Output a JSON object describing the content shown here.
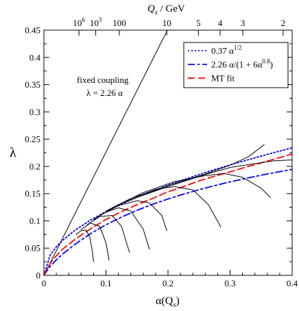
{
  "chart_data": {
    "type": "line",
    "title": "",
    "xlabel": "α(Q",
    "xlabel_sub": "s",
    "xlabel_close": ")",
    "ylabel": "λ",
    "xlim": [
      0,
      0.4
    ],
    "ylim": [
      0,
      0.45
    ],
    "x_ticks": [
      0,
      0.1,
      0.2,
      0.3,
      0.4
    ],
    "x_tick_labels": [
      "0",
      "0.1",
      "0.2",
      "0.3",
      "0.4"
    ],
    "y_ticks": [
      0,
      0.05,
      0.1,
      0.15,
      0.2,
      0.25,
      0.3,
      0.35,
      0.4,
      0.45
    ],
    "y_tick_labels": [
      "0",
      "0.05",
      "0.1",
      "0.15",
      "0.2",
      "0.25",
      "0.3",
      "0.35",
      "0.4",
      "0.45"
    ],
    "top_axis": {
      "label_main": "Q",
      "label_sub": "s",
      "label_unit": " / GeV",
      "ticks": [
        {
          "alpha": 0.0565,
          "base": "10",
          "exp": "6"
        },
        {
          "alpha": 0.0835,
          "base": "10",
          "exp": "3"
        },
        {
          "alpha": 0.1215,
          "base": "100",
          "exp": ""
        },
        {
          "alpha": 0.198,
          "base": "10",
          "exp": ""
        },
        {
          "alpha": 0.249,
          "base": "5",
          "exp": ""
        },
        {
          "alpha": 0.284,
          "base": "4",
          "exp": ""
        },
        {
          "alpha": 0.3205,
          "base": "3",
          "exp": ""
        },
        {
          "alpha": 0.3855,
          "base": "2",
          "exp": ""
        }
      ]
    },
    "annotation": {
      "line1": "fixed coupling",
      "line2": "λ = 2.26 α",
      "anchor_alpha": 0.165,
      "anchor_lambda": 0.36
    },
    "legend": {
      "position": "top-right",
      "entries": [
        {
          "id": "sqrt",
          "text_main": "0.37 α",
          "text_sup": "1/2",
          "text_tail": "",
          "color": "#0000ff",
          "dash": "2,3"
        },
        {
          "id": "ratio",
          "text_main": "2.26 α/(1 + 6α",
          "text_sup": "0.8",
          "text_tail": ")",
          "color": "#0000ff",
          "dash": "10,4,3,4"
        },
        {
          "id": "mt",
          "text_main": "MT fit",
          "text_sup": "",
          "text_tail": "",
          "color": "#ff0000",
          "dash": "10,5"
        }
      ]
    },
    "series": [
      {
        "kind": "fixed",
        "color": "#000000",
        "points": [
          [
            0,
            0
          ],
          [
            0.199,
            0.45
          ]
        ]
      },
      {
        "kind": "sqrt",
        "color": "#0000ff",
        "dash": "2,3",
        "points": [
          [
            0,
            0
          ],
          [
            0.01,
            0.037
          ],
          [
            0.02,
            0.0523
          ],
          [
            0.03,
            0.0641
          ],
          [
            0.05,
            0.0827
          ],
          [
            0.075,
            0.1013
          ],
          [
            0.1,
            0.117
          ],
          [
            0.125,
            0.1308
          ],
          [
            0.15,
            0.1433
          ],
          [
            0.175,
            0.1548
          ],
          [
            0.2,
            0.1655
          ],
          [
            0.225,
            0.1755
          ],
          [
            0.25,
            0.185
          ],
          [
            0.275,
            0.194
          ],
          [
            0.3,
            0.2027
          ],
          [
            0.325,
            0.2109
          ],
          [
            0.35,
            0.2189
          ],
          [
            0.375,
            0.2266
          ],
          [
            0.4,
            0.234
          ]
        ]
      },
      {
        "kind": "ratio",
        "color": "#0000ff",
        "dash": "10,4,3,4",
        "points": [
          [
            0,
            0
          ],
          [
            0.01,
            0.0164
          ],
          [
            0.02,
            0.0284
          ],
          [
            0.03,
            0.039
          ],
          [
            0.05,
            0.0569
          ],
          [
            0.075,
            0.0764
          ],
          [
            0.1,
            0.0929
          ],
          [
            0.125,
            0.107
          ],
          [
            0.15,
            0.1194
          ],
          [
            0.175,
            0.1304
          ],
          [
            0.2,
            0.1402
          ],
          [
            0.225,
            0.1491
          ],
          [
            0.25,
            0.1572
          ],
          [
            0.275,
            0.1647
          ],
          [
            0.3,
            0.1715
          ],
          [
            0.325,
            0.1779
          ],
          [
            0.35,
            0.1838
          ],
          [
            0.375,
            0.1893
          ],
          [
            0.4,
            0.1945
          ]
        ]
      },
      {
        "kind": "mt",
        "color": "#ff0000",
        "dash": "10,5",
        "points": [
          [
            0,
            0
          ],
          [
            0.01,
            0.022
          ],
          [
            0.02,
            0.036
          ],
          [
            0.03,
            0.048
          ],
          [
            0.05,
            0.066
          ],
          [
            0.075,
            0.0855
          ],
          [
            0.1,
            0.1025
          ],
          [
            0.125,
            0.117
          ],
          [
            0.15,
            0.1298
          ],
          [
            0.175,
            0.1412
          ],
          [
            0.2,
            0.1535
          ],
          [
            0.225,
            0.163
          ],
          [
            0.25,
            0.1733
          ],
          [
            0.275,
            0.182
          ],
          [
            0.3,
            0.19
          ],
          [
            0.325,
            0.1985
          ],
          [
            0.35,
            0.2065
          ],
          [
            0.375,
            0.2145
          ],
          [
            0.4,
            0.2225
          ]
        ]
      },
      {
        "kind": "solid",
        "color": "#000000",
        "points": [
          [
            0.052,
            0.075
          ],
          [
            0.06,
            0.082
          ],
          [
            0.068,
            0.083
          ],
          [
            0.074,
            0.07
          ],
          [
            0.078,
            0.045
          ],
          [
            0.08,
            0.025
          ]
        ]
      },
      {
        "kind": "solid",
        "color": "#000000",
        "points": [
          [
            0.06,
            0.084
          ],
          [
            0.075,
            0.096
          ],
          [
            0.09,
            0.09
          ],
          [
            0.1,
            0.06
          ],
          [
            0.105,
            0.028
          ]
        ]
      },
      {
        "kind": "solid",
        "color": "#000000",
        "points": [
          [
            0.07,
            0.093
          ],
          [
            0.09,
            0.108
          ],
          [
            0.11,
            0.11
          ],
          [
            0.125,
            0.09
          ],
          [
            0.138,
            0.042
          ]
        ]
      },
      {
        "kind": "solid",
        "color": "#000000",
        "points": [
          [
            0.08,
            0.102
          ],
          [
            0.1,
            0.116
          ],
          [
            0.12,
            0.124
          ],
          [
            0.14,
            0.118
          ],
          [
            0.16,
            0.085
          ],
          [
            0.17,
            0.048
          ]
        ]
      },
      {
        "kind": "solid",
        "color": "#000000",
        "points": [
          [
            0.09,
            0.11
          ],
          [
            0.12,
            0.128
          ],
          [
            0.15,
            0.137
          ],
          [
            0.17,
            0.133
          ],
          [
            0.19,
            0.11
          ],
          [
            0.198,
            0.082
          ]
        ]
      },
      {
        "kind": "solid",
        "color": "#000000",
        "points": [
          [
            0.1,
            0.118
          ],
          [
            0.14,
            0.141
          ],
          [
            0.18,
            0.158
          ],
          [
            0.21,
            0.163
          ],
          [
            0.24,
            0.157
          ],
          [
            0.265,
            0.13
          ],
          [
            0.285,
            0.089
          ]
        ]
      },
      {
        "kind": "solid",
        "color": "#000000",
        "points": [
          [
            0.11,
            0.124
          ],
          [
            0.16,
            0.152
          ],
          [
            0.21,
            0.172
          ],
          [
            0.26,
            0.183
          ],
          [
            0.29,
            0.187
          ],
          [
            0.32,
            0.18
          ],
          [
            0.35,
            0.16
          ],
          [
            0.365,
            0.143
          ]
        ]
      },
      {
        "kind": "solid",
        "color": "#000000",
        "points": [
          [
            0.12,
            0.13
          ],
          [
            0.2,
            0.165
          ],
          [
            0.26,
            0.186
          ],
          [
            0.3,
            0.202
          ],
          [
            0.33,
            0.218
          ],
          [
            0.355,
            0.24
          ]
        ]
      },
      {
        "kind": "solid",
        "color": "#000000",
        "points": [
          [
            0.13,
            0.135
          ],
          [
            0.2,
            0.163
          ],
          [
            0.26,
            0.185
          ],
          [
            0.3,
            0.198
          ],
          [
            0.34,
            0.205
          ],
          [
            0.37,
            0.21
          ],
          [
            0.4,
            0.212
          ]
        ]
      }
    ]
  }
}
